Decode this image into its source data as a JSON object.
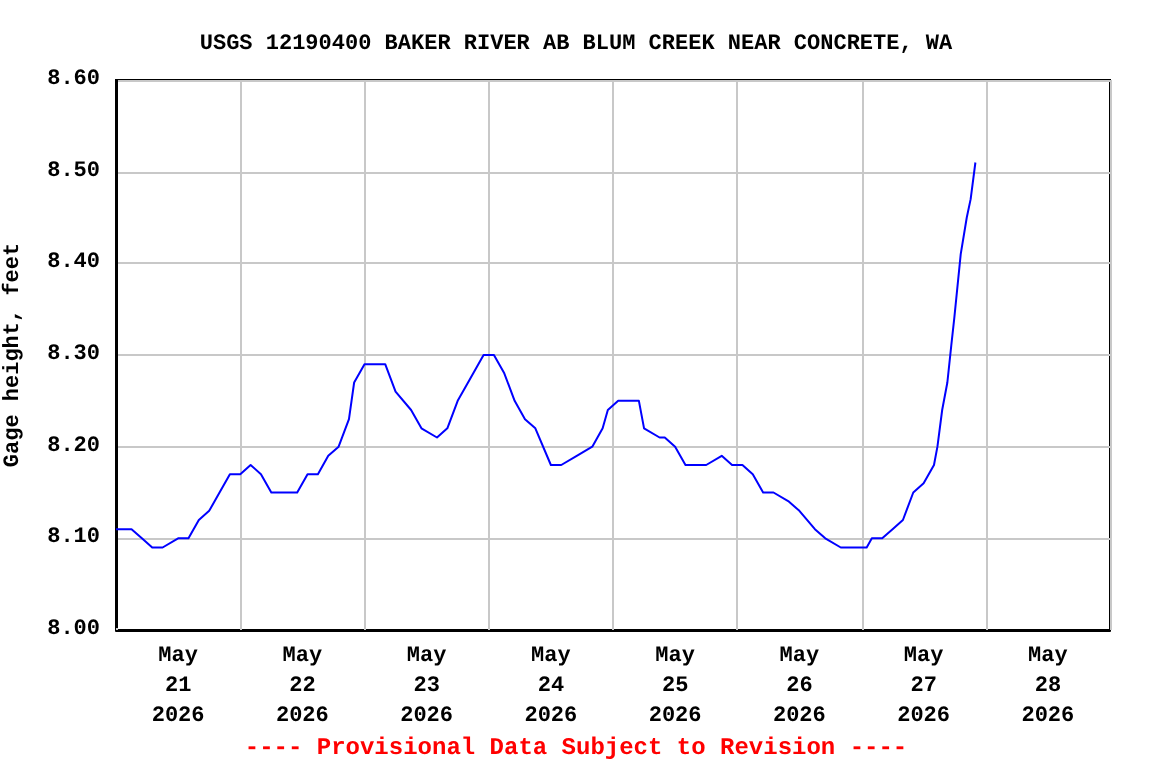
{
  "chart_data": {
    "type": "line",
    "title": "USGS 12190400 BAKER RIVER AB BLUM CREEK NEAR CONCRETE, WA",
    "ylabel": "Gage height, feet",
    "annotations": [
      "---- Provisional Data Subject to Revision ----"
    ],
    "xlim": [
      "2026-05-21T00:00",
      "2026-05-29T00:00"
    ],
    "xticks": [
      {
        "value": "2026-05-21T00:00",
        "label": null
      },
      {
        "value": "2026-05-21T12:00",
        "label": "May\n21\n2026"
      },
      {
        "value": "2026-05-22T00:00",
        "label": null
      },
      {
        "value": "2026-05-22T12:00",
        "label": "May\n22\n2026"
      },
      {
        "value": "2026-05-23T00:00",
        "label": null
      },
      {
        "value": "2026-05-23T12:00",
        "label": "May\n23\n2026"
      },
      {
        "value": "2026-05-24T00:00",
        "label": null
      },
      {
        "value": "2026-05-24T12:00",
        "label": "May\n24\n2026"
      },
      {
        "value": "2026-05-25T00:00",
        "label": null
      },
      {
        "value": "2026-05-25T12:00",
        "label": "May\n25\n2026"
      },
      {
        "value": "2026-05-26T00:00",
        "label": null
      },
      {
        "value": "2026-05-26T12:00",
        "label": "May\n26\n2026"
      },
      {
        "value": "2026-05-27T00:00",
        "label": null
      },
      {
        "value": "2026-05-27T12:00",
        "label": "May\n27\n2026"
      },
      {
        "value": "2026-05-28T00:00",
        "label": null
      },
      {
        "value": "2026-05-28T12:00",
        "label": "May\n28\n2026"
      },
      {
        "value": "2026-05-29T00:00",
        "label": null
      }
    ],
    "ylim": [
      8.0,
      8.6
    ],
    "yticks": [
      {
        "value": 8.0,
        "label": "8.00"
      },
      {
        "value": 8.1,
        "label": "8.10"
      },
      {
        "value": 8.2,
        "label": "8.20"
      },
      {
        "value": 8.3,
        "label": "8.30"
      },
      {
        "value": 8.4,
        "label": "8.40"
      },
      {
        "value": 8.5,
        "label": "8.50"
      },
      {
        "value": 8.6,
        "label": "8.60"
      }
    ],
    "grid": true,
    "marker": "none",
    "line_style": "solid",
    "series": [
      {
        "color": "#0000ff",
        "x": [
          "2026-05-21T00:00",
          "2026-05-21T03:00",
          "2026-05-21T05:00",
          "2026-05-21T07:00",
          "2026-05-21T09:00",
          "2026-05-21T12:00",
          "2026-05-21T14:00",
          "2026-05-21T16:00",
          "2026-05-21T18:00",
          "2026-05-21T20:00",
          "2026-05-21T22:00",
          "2026-05-22T00:00",
          "2026-05-22T02:00",
          "2026-05-22T04:00",
          "2026-05-22T06:00",
          "2026-05-22T08:00",
          "2026-05-22T11:00",
          "2026-05-22T13:00",
          "2026-05-22T15:00",
          "2026-05-22T17:00",
          "2026-05-22T19:00",
          "2026-05-22T21:00",
          "2026-05-22T22:00",
          "2026-05-23T00:00",
          "2026-05-23T02:00",
          "2026-05-23T04:00",
          "2026-05-23T06:00",
          "2026-05-23T09:00",
          "2026-05-23T11:00",
          "2026-05-23T14:00",
          "2026-05-23T16:00",
          "2026-05-23T18:00",
          "2026-05-23T20:00",
          "2026-05-23T23:00",
          "2026-05-24T01:00",
          "2026-05-24T03:00",
          "2026-05-24T05:00",
          "2026-05-24T07:00",
          "2026-05-24T09:00",
          "2026-05-24T12:00",
          "2026-05-24T14:00",
          "2026-05-24T17:00",
          "2026-05-24T20:00",
          "2026-05-24T22:00",
          "2026-05-24T23:00",
          "2026-05-25T01:00",
          "2026-05-25T05:00",
          "2026-05-25T06:00",
          "2026-05-25T09:00",
          "2026-05-25T10:00",
          "2026-05-25T12:00",
          "2026-05-25T14:00",
          "2026-05-25T16:00",
          "2026-05-25T18:00",
          "2026-05-25T21:00",
          "2026-05-25T23:00",
          "2026-05-26T01:00",
          "2026-05-26T03:00",
          "2026-05-26T05:00",
          "2026-05-26T07:00",
          "2026-05-26T10:00",
          "2026-05-26T12:00",
          "2026-05-26T15:00",
          "2026-05-26T17:00",
          "2026-05-26T20:00",
          "2026-05-26T23:00",
          "2026-05-27T01:00",
          "2026-05-27T02:00",
          "2026-05-27T04:00",
          "2026-05-27T06:00",
          "2026-05-27T08:00",
          "2026-05-27T10:00",
          "2026-05-27T12:00",
          "2026-05-27T14:00",
          "2026-05-27T14:40",
          "2026-05-27T15:35",
          "2026-05-27T16:35",
          "2026-05-27T17:20",
          "2026-05-27T17:55",
          "2026-05-27T19:10",
          "2026-05-27T20:20",
          "2026-05-27T21:05",
          "2026-05-27T22:00"
        ],
        "values": [
          8.11,
          8.11,
          8.1,
          8.09,
          8.09,
          8.1,
          8.1,
          8.12,
          8.13,
          8.15,
          8.17,
          8.17,
          8.18,
          8.17,
          8.15,
          8.15,
          8.15,
          8.17,
          8.17,
          8.19,
          8.2,
          8.23,
          8.27,
          8.29,
          8.29,
          8.29,
          8.26,
          8.24,
          8.22,
          8.21,
          8.22,
          8.25,
          8.27,
          8.3,
          8.3,
          8.28,
          8.25,
          8.23,
          8.22,
          8.18,
          8.18,
          8.19,
          8.2,
          8.22,
          8.24,
          8.25,
          8.25,
          8.22,
          8.21,
          8.21,
          8.2,
          8.18,
          8.18,
          8.18,
          8.19,
          8.18,
          8.18,
          8.17,
          8.15,
          8.15,
          8.14,
          8.13,
          8.11,
          8.1,
          8.09,
          8.09,
          8.09,
          8.1,
          8.1,
          8.11,
          8.12,
          8.15,
          8.16,
          8.18,
          8.2,
          8.24,
          8.27,
          8.31,
          8.34,
          8.41,
          8.45,
          8.47,
          8.51
        ]
      }
    ]
  }
}
